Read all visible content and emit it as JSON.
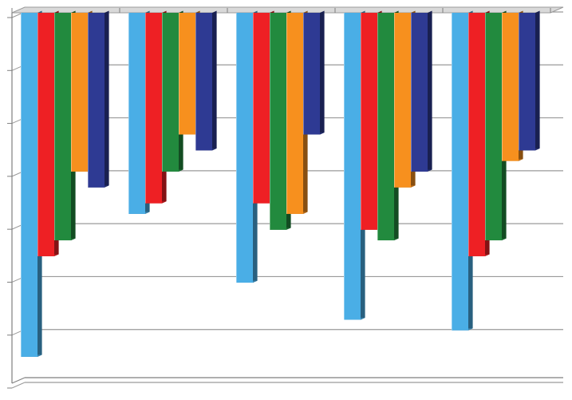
{
  "chart_data": {
    "type": "bar",
    "orientation": "inverted-vertical",
    "style": "3d-clustered",
    "title": "",
    "xlabel": "",
    "ylabel": "",
    "categories": [
      "",
      "",
      "",
      "",
      ""
    ],
    "ylim": [
      0,
      7
    ],
    "grid": true,
    "legend": "none",
    "series": [
      {
        "color": "#4aaee6",
        "values": [
          6.5,
          3.8,
          5.1,
          5.8,
          6.0
        ]
      },
      {
        "color": "#ee2024",
        "values": [
          4.6,
          3.6,
          3.6,
          4.1,
          4.6
        ]
      },
      {
        "color": "#228a3e",
        "values": [
          4.3,
          3.0,
          4.1,
          4.3,
          4.3
        ]
      },
      {
        "color": "#f7901e",
        "values": [
          3.0,
          2.3,
          3.8,
          3.3,
          2.8
        ]
      },
      {
        "color": "#2e3a93",
        "values": [
          3.3,
          2.6,
          2.3,
          3.0,
          2.6
        ]
      }
    ]
  }
}
